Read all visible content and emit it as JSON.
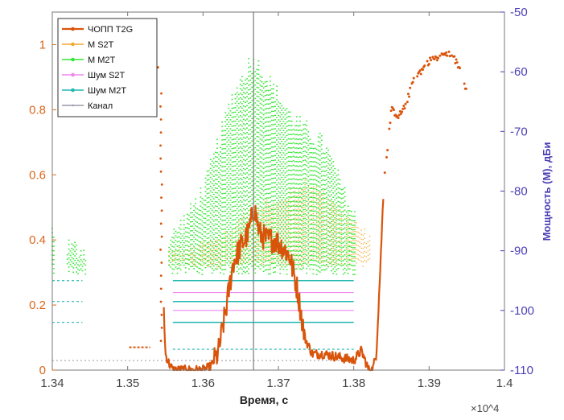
{
  "chart_data": {
    "type": "line",
    "xlabel": "Время, с",
    "ylabel_right": "Мощность (M), дБи",
    "x_exponent_label": "×10^4",
    "xlim": [
      1.34,
      1.4
    ],
    "ylim_left": [
      0,
      1.1
    ],
    "ylim_right": [
      -110,
      -50
    ],
    "x_ticks": [
      "1.34",
      "1.35",
      "1.36",
      "1.37",
      "1.38",
      "1.39",
      "1.4"
    ],
    "y_ticks_left": [
      "0",
      "0.2",
      "0.4",
      "0.6",
      "0.8",
      "1"
    ],
    "y_ticks_right": [
      "-50",
      "-60",
      "-70",
      "-80",
      "-90",
      "-100",
      "-110"
    ],
    "vertical_marker_x": 1.3667,
    "grid": false,
    "legend_position": "top-left",
    "colors": {
      "chopp": "#d9540b",
      "m_s2t": "#f0a830",
      "m_m2t": "#33e633",
      "noise_s2t": "#ee88ee",
      "noise_m2t": "#20b8b0",
      "channel": "#9999aa",
      "left_axis": "#d9671e",
      "right_axis": "#4a3fb5"
    },
    "series": [
      {
        "name": "ЧОПП T2G",
        "axis": "left",
        "x": [
          1.35,
          1.351,
          1.353,
          1.354,
          1.3545,
          1.355,
          1.3555,
          1.356,
          1.3575,
          1.359,
          1.36,
          1.361,
          1.362,
          1.363,
          1.364,
          1.365,
          1.366,
          1.3668,
          1.3675,
          1.3685,
          1.3695,
          1.3705,
          1.3715,
          1.3725,
          1.3735,
          1.3745,
          1.376,
          1.378,
          1.38,
          1.381,
          1.382,
          1.3825,
          1.383,
          1.3835,
          1.384,
          1.385,
          1.386,
          1.387,
          1.388,
          1.389,
          1.39,
          1.391,
          1.392,
          1.393,
          1.394,
          1.395
        ],
        "y": [
          0.07,
          0.07,
          0.07,
          0.08,
          0.4,
          0.05,
          0.02,
          0.0,
          0.0,
          0.0,
          0.0,
          0.01,
          0.05,
          0.18,
          0.33,
          0.38,
          0.42,
          0.5,
          0.42,
          0.4,
          0.4,
          0.38,
          0.35,
          0.25,
          0.1,
          0.05,
          0.05,
          0.04,
          0.03,
          0.06,
          0.0,
          0.0,
          0.05,
          0.3,
          0.58,
          0.8,
          0.78,
          0.82,
          0.9,
          0.92,
          0.95,
          0.96,
          0.97,
          0.97,
          0.93,
          0.86
        ]
      },
      {
        "name": "M S2T",
        "axis": "right",
        "x": [
          1.3555,
          1.358,
          1.36,
          1.362,
          1.364,
          1.366,
          1.368,
          1.37,
          1.372,
          1.374,
          1.376,
          1.378,
          1.38,
          1.382
        ],
        "y": [
          -90,
          -90,
          -89,
          -88,
          -86,
          -84,
          -82,
          -82,
          -80,
          -78,
          -80,
          -83,
          -85,
          -88
        ]
      },
      {
        "name": "M M2T",
        "axis": "right",
        "x": [
          1.34,
          1.342,
          1.344,
          1.3555,
          1.358,
          1.36,
          1.362,
          1.364,
          1.366,
          1.367,
          1.368,
          1.37,
          1.372,
          1.374,
          1.376,
          1.378,
          1.38
        ],
        "y": [
          -86,
          -89,
          -90,
          -88,
          -84,
          -80,
          -72,
          -64,
          -59,
          -58,
          -60,
          -64,
          -68,
          -70,
          -72,
          -78,
          -84
        ]
      },
      {
        "name": "Шум S2T",
        "axis": "right",
        "x": [
          1.356,
          1.38
        ],
        "y": [
          -97,
          -97
        ]
      },
      {
        "name": "Шум M2T",
        "axis": "right",
        "x": [
          1.34,
          1.344,
          1.356,
          1.38
        ],
        "y": [
          -102,
          -102,
          -102,
          -102
        ]
      },
      {
        "name": "Канал",
        "axis": "right",
        "x": [
          1.34,
          1.38
        ],
        "y": [
          -108,
          -108
        ]
      }
    ]
  }
}
